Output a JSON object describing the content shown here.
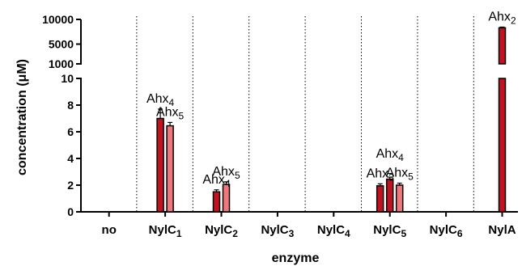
{
  "chart_data": {
    "type": "bar",
    "xlabel": "enzyme",
    "ylabel": "concentration (μM)",
    "categories": [
      {
        "name": "no",
        "sub": ""
      },
      {
        "name": "NylC",
        "sub": "1"
      },
      {
        "name": "NylC",
        "sub": "2"
      },
      {
        "name": "NylC",
        "sub": "3"
      },
      {
        "name": "NylC",
        "sub": "4"
      },
      {
        "name": "NylC",
        "sub": "5"
      },
      {
        "name": "NylC",
        "sub": "6"
      },
      {
        "name": "NylA",
        "sub": ""
      }
    ],
    "y_axis": {
      "broken": true,
      "lower": {
        "range": [
          0,
          10
        ],
        "ticks": [
          "0",
          "2",
          "4",
          "6",
          "8",
          "10"
        ]
      },
      "upper": {
        "range": [
          1000,
          10000
        ],
        "ticks": [
          "1000",
          "5000",
          "10000"
        ]
      }
    },
    "grid": false,
    "separators": "dotted vertical lines between categories",
    "colors": {
      "dark": "#c1121f",
      "light": "#f0787c",
      "outline": "#000000"
    },
    "bars": [
      {
        "category": 1,
        "product": "Ahx",
        "sub": "4",
        "value": 7.0,
        "error": 0.7,
        "color": "dark"
      },
      {
        "category": 1,
        "product": "Ahx",
        "sub": "5",
        "value": 6.45,
        "error": 0.25,
        "color": "light"
      },
      {
        "category": 2,
        "product": "Ahx",
        "sub": "4",
        "value": 1.5,
        "error": 0.15,
        "color": "dark"
      },
      {
        "category": 2,
        "product": "Ahx",
        "sub": "5",
        "value": 2.05,
        "error": 0.2,
        "color": "light"
      },
      {
        "category": 5,
        "product": "Ahx",
        "sub": "3",
        "value": 1.95,
        "error": 0.15,
        "color": "dark"
      },
      {
        "category": 5,
        "product": "Ahx",
        "sub": "4",
        "value": 2.45,
        "error": 0.15,
        "color": "dark"
      },
      {
        "category": 5,
        "product": "Ahx",
        "sub": "5",
        "value": 2.0,
        "error": 0.15,
        "color": "light"
      },
      {
        "category": 7,
        "product": "Ahx",
        "sub": "2",
        "value": 8300,
        "error": 150,
        "color": "dark"
      }
    ]
  }
}
